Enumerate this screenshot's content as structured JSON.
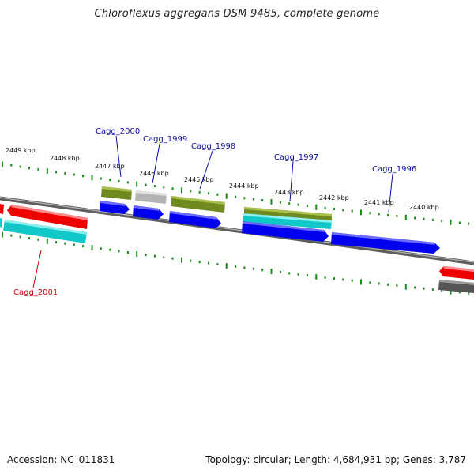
{
  "title": "Chloroflexus aggregans DSM 9485, complete genome",
  "footer": {
    "accession": "Accession: NC_011831",
    "summary": "Topology: circular; Length: 4,684,931 bp; Genes: 3,787"
  },
  "colors": {
    "backbone": "#7a7a7a",
    "tick": "#1a8a1a",
    "label_blue": "#0a0aa0",
    "label_red": "#d00000",
    "gene_blue": "#0000ee",
    "gene_red": "#ee0000",
    "gene_cyan": "#10c8c8",
    "gene_olive": "#6f8a1e",
    "gene_gray": "#b4b4b4",
    "gene_dark": "#555555"
  },
  "scale_labels": [
    "2449 kbp",
    "2448 kbp",
    "2447 kbp",
    "2446 kbp",
    "2445 kbp",
    "2444 kbp",
    "2443 kbp",
    "2442 kbp",
    "2441 kbp",
    "2440 kbp"
  ],
  "gene_labels": [
    {
      "id": "cagg2000",
      "text": "Cagg_2000",
      "color": "blue"
    },
    {
      "id": "cagg1999",
      "text": "Cagg_1999",
      "color": "blue"
    },
    {
      "id": "cagg1998",
      "text": "Cagg_1998",
      "color": "blue"
    },
    {
      "id": "cagg1997",
      "text": "Cagg_1997",
      "color": "blue"
    },
    {
      "id": "cagg1996",
      "text": "Cagg_1996",
      "color": "blue"
    },
    {
      "id": "cagg2001",
      "text": "Cagg_2001",
      "color": "red"
    }
  ]
}
